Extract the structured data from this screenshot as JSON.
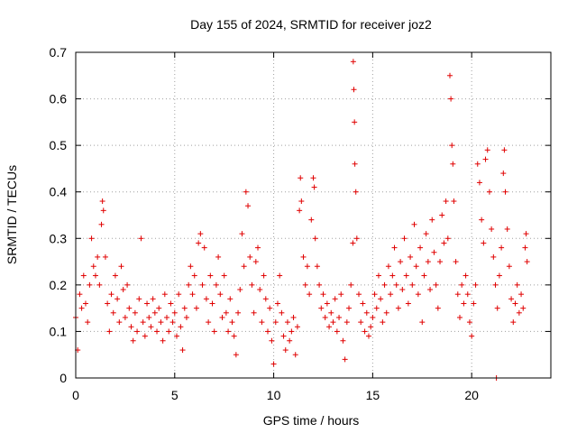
{
  "chart_data": {
    "type": "scatter",
    "title": "Day 155 of 2024, SRMTID for receiver joz2",
    "xlabel": "GPS time / hours",
    "ylabel": "SRMTID / TECUs",
    "xlim": [
      0,
      24
    ],
    "ylim": [
      0,
      0.7
    ],
    "x_ticks": [
      0,
      5,
      10,
      15,
      20
    ],
    "y_ticks": [
      0,
      0.1,
      0.2,
      0.3,
      0.4,
      0.5,
      0.6,
      0.7
    ],
    "grid": true,
    "marker": "+",
    "color": "#e00000",
    "series": [
      {
        "name": "SRMTID",
        "points": [
          [
            0.0,
            0.13
          ],
          [
            0.1,
            0.06
          ],
          [
            0.2,
            0.18
          ],
          [
            0.3,
            0.15
          ],
          [
            0.4,
            0.22
          ],
          [
            0.5,
            0.16
          ],
          [
            0.6,
            0.12
          ],
          [
            0.7,
            0.2
          ],
          [
            0.8,
            0.3
          ],
          [
            0.9,
            0.24
          ],
          [
            1.0,
            0.22
          ],
          [
            1.1,
            0.26
          ],
          [
            1.2,
            0.2
          ],
          [
            1.3,
            0.33
          ],
          [
            1.35,
            0.38
          ],
          [
            1.4,
            0.36
          ],
          [
            1.5,
            0.26
          ],
          [
            1.6,
            0.16
          ],
          [
            1.7,
            0.1
          ],
          [
            1.8,
            0.18
          ],
          [
            1.9,
            0.14
          ],
          [
            2.0,
            0.22
          ],
          [
            2.1,
            0.17
          ],
          [
            2.2,
            0.12
          ],
          [
            2.3,
            0.24
          ],
          [
            2.4,
            0.19
          ],
          [
            2.5,
            0.13
          ],
          [
            2.6,
            0.2
          ],
          [
            2.7,
            0.15
          ],
          [
            2.8,
            0.11
          ],
          [
            2.9,
            0.08
          ],
          [
            3.0,
            0.14
          ],
          [
            3.1,
            0.1
          ],
          [
            3.2,
            0.17
          ],
          [
            3.3,
            0.3
          ],
          [
            3.4,
            0.12
          ],
          [
            3.5,
            0.09
          ],
          [
            3.6,
            0.16
          ],
          [
            3.7,
            0.13
          ],
          [
            3.8,
            0.11
          ],
          [
            3.9,
            0.17
          ],
          [
            4.0,
            0.14
          ],
          [
            4.1,
            0.1
          ],
          [
            4.2,
            0.15
          ],
          [
            4.3,
            0.12
          ],
          [
            4.4,
            0.08
          ],
          [
            4.5,
            0.18
          ],
          [
            4.6,
            0.13
          ],
          [
            4.7,
            0.1
          ],
          [
            4.8,
            0.16
          ],
          [
            4.9,
            0.12
          ],
          [
            5.0,
            0.14
          ],
          [
            5.1,
            0.09
          ],
          [
            5.2,
            0.18
          ],
          [
            5.3,
            0.11
          ],
          [
            5.4,
            0.06
          ],
          [
            5.5,
            0.15
          ],
          [
            5.6,
            0.13
          ],
          [
            5.7,
            0.2
          ],
          [
            5.8,
            0.24
          ],
          [
            5.9,
            0.18
          ],
          [
            6.0,
            0.22
          ],
          [
            6.1,
            0.15
          ],
          [
            6.2,
            0.29
          ],
          [
            6.3,
            0.31
          ],
          [
            6.4,
            0.2
          ],
          [
            6.5,
            0.28
          ],
          [
            6.6,
            0.17
          ],
          [
            6.7,
            0.12
          ],
          [
            6.8,
            0.22
          ],
          [
            6.9,
            0.16
          ],
          [
            7.0,
            0.1
          ],
          [
            7.1,
            0.2
          ],
          [
            7.2,
            0.26
          ],
          [
            7.3,
            0.18
          ],
          [
            7.4,
            0.13
          ],
          [
            7.5,
            0.22
          ],
          [
            7.6,
            0.14
          ],
          [
            7.7,
            0.1
          ],
          [
            7.8,
            0.17
          ],
          [
            7.9,
            0.12
          ],
          [
            8.0,
            0.09
          ],
          [
            8.1,
            0.05
          ],
          [
            8.2,
            0.14
          ],
          [
            8.3,
            0.19
          ],
          [
            8.4,
            0.31
          ],
          [
            8.5,
            0.24
          ],
          [
            8.6,
            0.4
          ],
          [
            8.7,
            0.37
          ],
          [
            8.8,
            0.26
          ],
          [
            8.9,
            0.2
          ],
          [
            9.0,
            0.14
          ],
          [
            9.1,
            0.25
          ],
          [
            9.2,
            0.28
          ],
          [
            9.3,
            0.19
          ],
          [
            9.4,
            0.12
          ],
          [
            9.5,
            0.22
          ],
          [
            9.6,
            0.17
          ],
          [
            9.7,
            0.1
          ],
          [
            9.8,
            0.15
          ],
          [
            9.9,
            0.08
          ],
          [
            10.0,
            0.03
          ],
          [
            10.1,
            0.12
          ],
          [
            10.2,
            0.16
          ],
          [
            10.3,
            0.22
          ],
          [
            10.4,
            0.14
          ],
          [
            10.5,
            0.09
          ],
          [
            10.6,
            0.06
          ],
          [
            10.7,
            0.12
          ],
          [
            10.8,
            0.08
          ],
          [
            10.9,
            0.1
          ],
          [
            11.0,
            0.13
          ],
          [
            11.1,
            0.05
          ],
          [
            11.2,
            0.11
          ],
          [
            11.3,
            0.36
          ],
          [
            11.35,
            0.43
          ],
          [
            11.4,
            0.38
          ],
          [
            11.5,
            0.26
          ],
          [
            11.6,
            0.2
          ],
          [
            11.7,
            0.24
          ],
          [
            11.8,
            0.18
          ],
          [
            11.9,
            0.34
          ],
          [
            12.0,
            0.43
          ],
          [
            12.05,
            0.41
          ],
          [
            12.1,
            0.3
          ],
          [
            12.2,
            0.24
          ],
          [
            12.3,
            0.2
          ],
          [
            12.4,
            0.15
          ],
          [
            12.5,
            0.18
          ],
          [
            12.6,
            0.13
          ],
          [
            12.7,
            0.16
          ],
          [
            12.8,
            0.11
          ],
          [
            12.9,
            0.14
          ],
          [
            13.0,
            0.12
          ],
          [
            13.1,
            0.17
          ],
          [
            13.2,
            0.1
          ],
          [
            13.3,
            0.13
          ],
          [
            13.4,
            0.18
          ],
          [
            13.5,
            0.08
          ],
          [
            13.6,
            0.04
          ],
          [
            13.7,
            0.12
          ],
          [
            13.8,
            0.15
          ],
          [
            13.9,
            0.2
          ],
          [
            14.0,
            0.29
          ],
          [
            14.02,
            0.68
          ],
          [
            14.05,
            0.62
          ],
          [
            14.08,
            0.55
          ],
          [
            14.1,
            0.46
          ],
          [
            14.15,
            0.4
          ],
          [
            14.2,
            0.3
          ],
          [
            14.3,
            0.18
          ],
          [
            14.4,
            0.12
          ],
          [
            14.5,
            0.16
          ],
          [
            14.6,
            0.1
          ],
          [
            14.7,
            0.14
          ],
          [
            14.8,
            0.09
          ],
          [
            14.9,
            0.11
          ],
          [
            15.0,
            0.13
          ],
          [
            15.1,
            0.18
          ],
          [
            15.2,
            0.15
          ],
          [
            15.3,
            0.22
          ],
          [
            15.4,
            0.17
          ],
          [
            15.5,
            0.12
          ],
          [
            15.6,
            0.2
          ],
          [
            15.7,
            0.14
          ],
          [
            15.8,
            0.24
          ],
          [
            15.9,
            0.18
          ],
          [
            16.0,
            0.22
          ],
          [
            16.1,
            0.28
          ],
          [
            16.2,
            0.2
          ],
          [
            16.3,
            0.15
          ],
          [
            16.4,
            0.25
          ],
          [
            16.5,
            0.19
          ],
          [
            16.6,
            0.3
          ],
          [
            16.7,
            0.22
          ],
          [
            16.8,
            0.16
          ],
          [
            16.9,
            0.26
          ],
          [
            17.0,
            0.2
          ],
          [
            17.1,
            0.33
          ],
          [
            17.2,
            0.24
          ],
          [
            17.3,
            0.18
          ],
          [
            17.4,
            0.28
          ],
          [
            17.5,
            0.12
          ],
          [
            17.6,
            0.22
          ],
          [
            17.7,
            0.31
          ],
          [
            17.8,
            0.25
          ],
          [
            17.9,
            0.19
          ],
          [
            18.0,
            0.34
          ],
          [
            18.1,
            0.27
          ],
          [
            18.2,
            0.2
          ],
          [
            18.3,
            0.15
          ],
          [
            18.4,
            0.25
          ],
          [
            18.5,
            0.35
          ],
          [
            18.6,
            0.29
          ],
          [
            18.7,
            0.38
          ],
          [
            18.8,
            0.3
          ],
          [
            18.9,
            0.65
          ],
          [
            18.95,
            0.6
          ],
          [
            19.0,
            0.5
          ],
          [
            19.05,
            0.46
          ],
          [
            19.1,
            0.38
          ],
          [
            19.2,
            0.25
          ],
          [
            19.3,
            0.18
          ],
          [
            19.4,
            0.13
          ],
          [
            19.5,
            0.2
          ],
          [
            19.6,
            0.16
          ],
          [
            19.7,
            0.22
          ],
          [
            19.8,
            0.18
          ],
          [
            19.9,
            0.12
          ],
          [
            20.0,
            0.09
          ],
          [
            20.1,
            0.16
          ],
          [
            20.2,
            0.2
          ],
          [
            20.3,
            0.46
          ],
          [
            20.4,
            0.42
          ],
          [
            20.5,
            0.34
          ],
          [
            20.6,
            0.29
          ],
          [
            20.7,
            0.47
          ],
          [
            20.8,
            0.49
          ],
          [
            20.9,
            0.4
          ],
          [
            21.0,
            0.32
          ],
          [
            21.1,
            0.26
          ],
          [
            21.2,
            0.2
          ],
          [
            21.3,
            0.15
          ],
          [
            21.4,
            0.22
          ],
          [
            21.5,
            0.28
          ],
          [
            21.6,
            0.44
          ],
          [
            21.65,
            0.49
          ],
          [
            21.7,
            0.4
          ],
          [
            21.8,
            0.32
          ],
          [
            21.9,
            0.24
          ],
          [
            22.0,
            0.17
          ],
          [
            22.1,
            0.12
          ],
          [
            22.2,
            0.16
          ],
          [
            22.3,
            0.2
          ],
          [
            22.4,
            0.14
          ],
          [
            22.5,
            0.18
          ],
          [
            22.6,
            0.15
          ],
          [
            22.7,
            0.28
          ],
          [
            22.75,
            0.31
          ],
          [
            22.8,
            0.25
          ],
          [
            21.25,
            0.0
          ]
        ]
      }
    ]
  }
}
